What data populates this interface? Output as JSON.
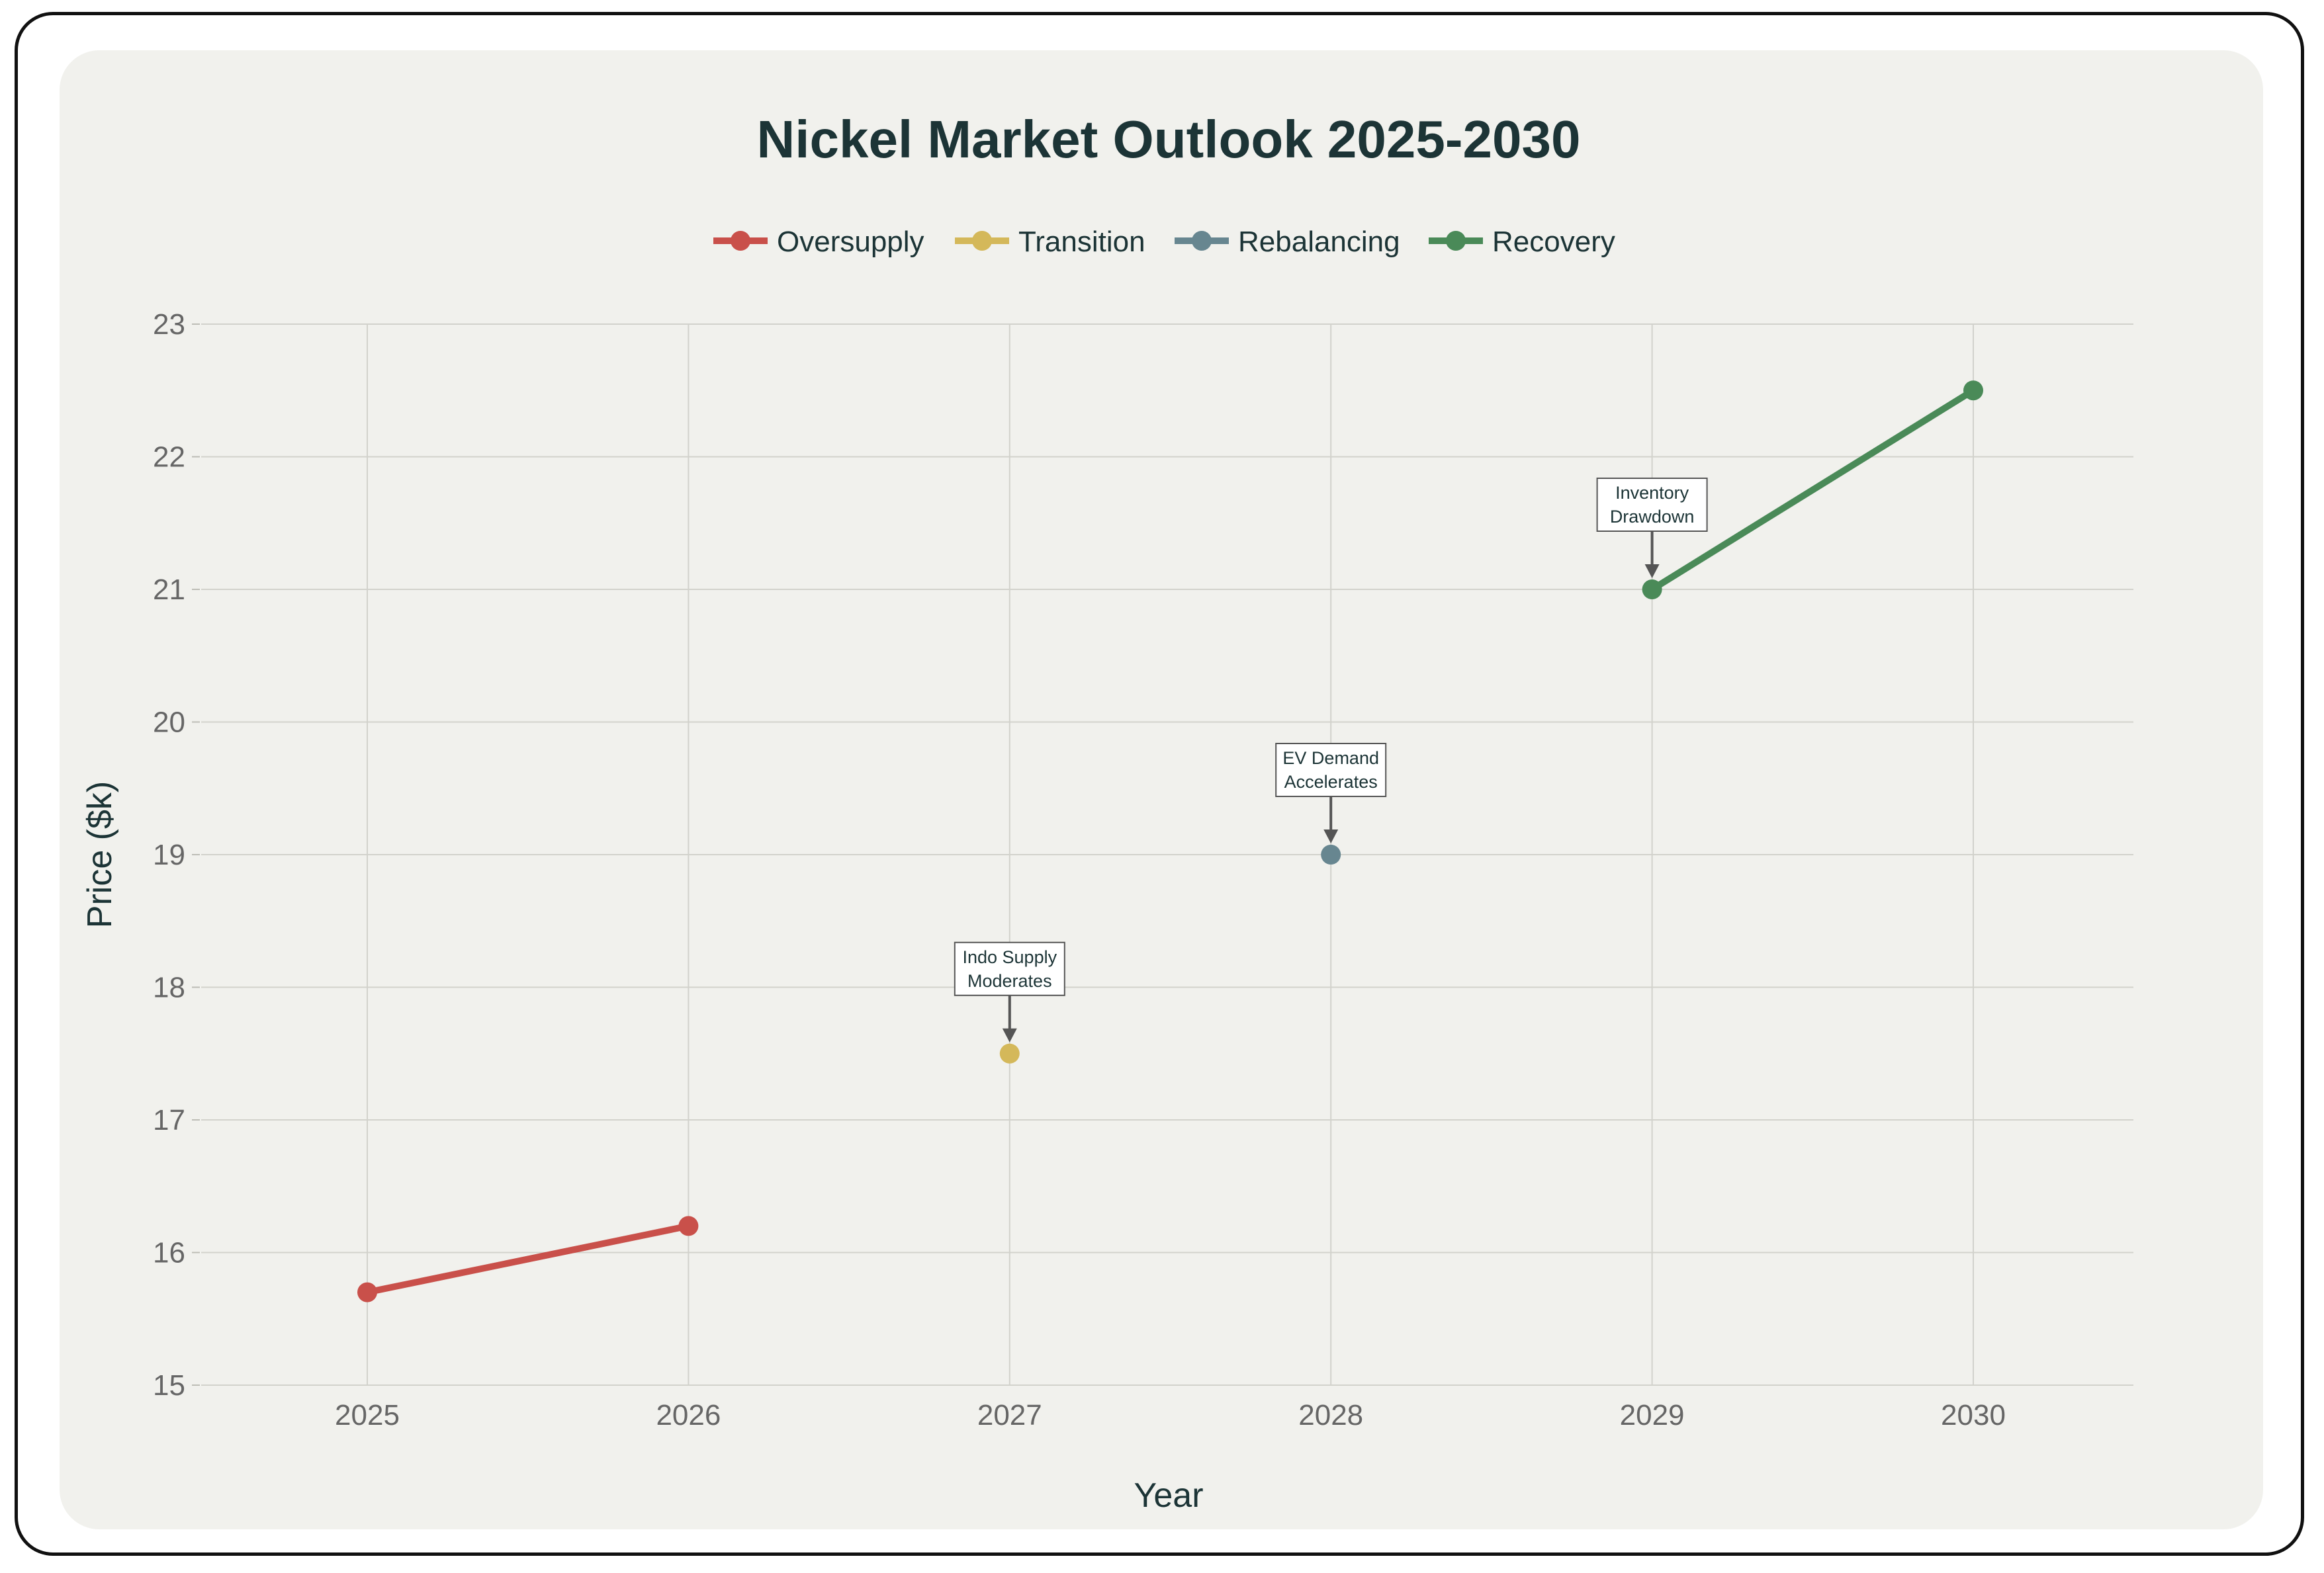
{
  "chart_data": {
    "type": "line",
    "title": "Nickel Market Outlook 2025-2030",
    "xlabel": "Year",
    "ylabel": "Price ($k)",
    "x_ticks": [
      "2025",
      "2026",
      "2027",
      "2028",
      "2029",
      "2030"
    ],
    "y_ticks": [
      "15",
      "16",
      "17",
      "18",
      "19",
      "20",
      "21",
      "22",
      "23"
    ],
    "xlim": [
      2024.5,
      2030.5
    ],
    "ylim": [
      15,
      23
    ],
    "grid": true,
    "legend_position": "top-center",
    "series": [
      {
        "name": "Oversupply",
        "color": "#c9504a",
        "points": [
          [
            2025,
            15.7
          ],
          [
            2026,
            16.2
          ]
        ]
      },
      {
        "name": "Transition",
        "color": "#d4b85a",
        "points": [
          [
            2027,
            17.5
          ]
        ]
      },
      {
        "name": "Rebalancing",
        "color": "#678690",
        "points": [
          [
            2028,
            19.0
          ]
        ]
      },
      {
        "name": "Recovery",
        "color": "#4a8a58",
        "points": [
          [
            2029,
            21.0
          ],
          [
            2030,
            22.5
          ]
        ]
      }
    ],
    "annotations": [
      {
        "x": 2027,
        "y": 17.5,
        "lines": [
          "Indo Supply",
          "Moderates"
        ]
      },
      {
        "x": 2028,
        "y": 19.0,
        "lines": [
          "EV Demand",
          "Accelerates"
        ]
      },
      {
        "x": 2029,
        "y": 21.0,
        "lines": [
          "Inventory",
          "Drawdown"
        ]
      }
    ]
  }
}
